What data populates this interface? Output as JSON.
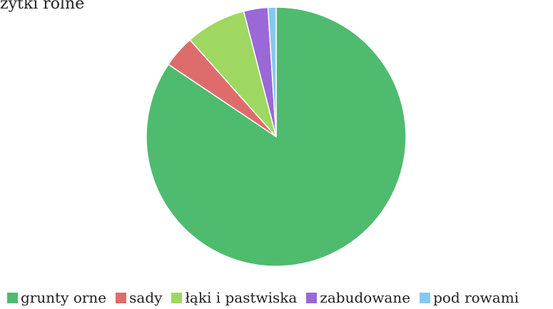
{
  "chart_data": {
    "type": "pie",
    "title": "użytki rolne",
    "title_visible": "żytki rolne",
    "slices": [
      {
        "label": "grunty orne",
        "value": 84.0,
        "color": "#4fbb6f"
      },
      {
        "label": "sady",
        "value": 4.0,
        "color": "#de6c6c"
      },
      {
        "label": "łąki i pastwiska",
        "value": 7.5,
        "color": "#9ed860"
      },
      {
        "label": "zabudowane",
        "value": 3.0,
        "color": "#9b68d8"
      },
      {
        "label": "pod rowami",
        "value": 1.0,
        "color": "#86c8ef"
      }
    ],
    "legend_position": "bottom"
  }
}
